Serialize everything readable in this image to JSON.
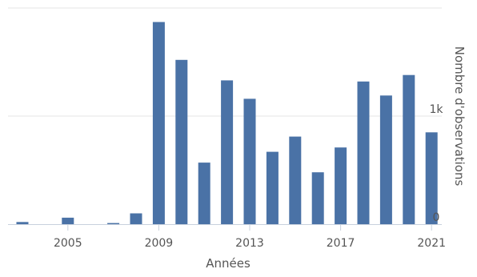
{
  "chart_data": {
    "type": "bar",
    "categories": [
      "2003",
      "2004",
      "2005",
      "2006",
      "2007",
      "2008",
      "2009",
      "2010",
      "2011",
      "2012",
      "2013",
      "2014",
      "2015",
      "2016",
      "2017",
      "2018",
      "2019",
      "2020",
      "2021"
    ],
    "values": [
      20,
      0,
      60,
      0,
      10,
      100,
      1870,
      1520,
      570,
      1330,
      1160,
      670,
      810,
      480,
      710,
      1320,
      1190,
      1380,
      850
    ],
    "xlabel": "Années",
    "ylabel": "Nombre d'observations",
    "x_ticks": [
      "2005",
      "2009",
      "2013",
      "2017",
      "2021"
    ],
    "y_ticks": [
      {
        "value": 0,
        "label": "0"
      },
      {
        "value": 1000,
        "label": "1k"
      },
      {
        "value": 2000,
        "label": ""
      }
    ],
    "ylim": [
      0,
      2000
    ],
    "y_axis_position": "right",
    "grid": true,
    "bar_color": "#4a72a6",
    "grid_color": "#e6e6e6",
    "axis_color": "#c8d1dd",
    "text_color": "#555555"
  }
}
